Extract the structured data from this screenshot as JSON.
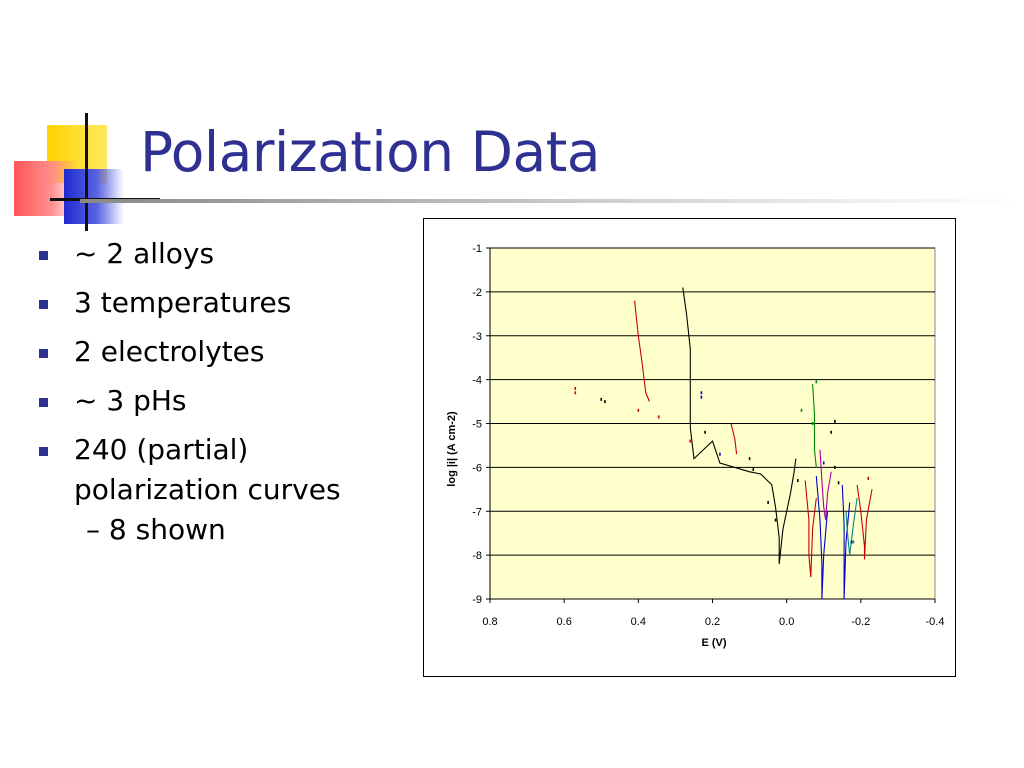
{
  "slide": {
    "title": "Polarization Data",
    "bullets": [
      "~ 2 alloys",
      "3 temperatures",
      "2 electrolytes",
      "~ 3 pHs",
      "240 (partial) polarization curves"
    ],
    "sub_bullet": "– 8 shown",
    "accent_color": "#2e3192"
  },
  "chart_data": {
    "type": "line",
    "xlabel": "E (V)",
    "ylabel": "log |i| (A cm-2)",
    "xlim": [
      0.8,
      -0.4
    ],
    "ylim": [
      -9,
      -1
    ],
    "x_ticks": [
      "0.8",
      "0.6",
      "0.4",
      "0.2",
      "0.0",
      "-0.2",
      "-0.4"
    ],
    "y_ticks": [
      "-1",
      "-2",
      "-3",
      "-4",
      "-5",
      "-6",
      "-7",
      "-8",
      "-9"
    ],
    "grid": "horizontal",
    "plot_background": "#ffffcc",
    "legend": "none",
    "series": [
      {
        "color": "#000000",
        "points": [
          [
            0.28,
            -1.9
          ],
          [
            0.27,
            -2.5
          ],
          [
            0.26,
            -3.3
          ],
          [
            0.26,
            -4.2
          ],
          [
            0.26,
            -5.1
          ],
          [
            0.25,
            -5.8
          ],
          [
            0.2,
            -5.4
          ],
          [
            0.18,
            -5.9
          ],
          [
            0.1,
            -6.1
          ],
          [
            0.07,
            -6.15
          ],
          [
            0.04,
            -6.4
          ],
          [
            0.03,
            -6.9
          ],
          [
            0.02,
            -7.6
          ],
          [
            0.02,
            -8.2
          ],
          [
            0.01,
            -7.4
          ],
          [
            -0.01,
            -6.6
          ],
          [
            -0.02,
            -6.1
          ],
          [
            -0.025,
            -5.8
          ]
        ]
      },
      {
        "color": "#cc0000",
        "points": [
          [
            0.41,
            -2.2
          ],
          [
            0.4,
            -3.0
          ],
          [
            0.39,
            -3.6
          ],
          [
            0.38,
            -4.3
          ],
          [
            0.37,
            -4.5
          ]
        ]
      },
      {
        "color": "#cc0000",
        "points": [
          [
            0.15,
            -5.0
          ],
          [
            0.14,
            -5.35
          ],
          [
            0.135,
            -5.7
          ]
        ]
      },
      {
        "color": "#cc0000",
        "points": [
          [
            -0.05,
            -6.3
          ],
          [
            -0.06,
            -7.2
          ],
          [
            -0.06,
            -8.0
          ],
          [
            -0.065,
            -8.5
          ],
          [
            -0.07,
            -7.4
          ],
          [
            -0.08,
            -6.7
          ]
        ]
      },
      {
        "color": "#cc0000",
        "points": [
          [
            -0.19,
            -6.4
          ],
          [
            -0.2,
            -7.0
          ],
          [
            -0.21,
            -7.8
          ],
          [
            -0.21,
            -8.1
          ],
          [
            -0.215,
            -7.2
          ],
          [
            -0.23,
            -6.5
          ]
        ]
      },
      {
        "color": "#008800",
        "points": [
          [
            -0.07,
            -4.1
          ],
          [
            -0.075,
            -4.8
          ],
          [
            -0.075,
            -5.6
          ],
          [
            -0.08,
            -6.0
          ]
        ]
      },
      {
        "color": "#0000cc",
        "points": [
          [
            -0.08,
            -6.2
          ],
          [
            -0.09,
            -7.2
          ],
          [
            -0.095,
            -8.2
          ],
          [
            -0.095,
            -9.0
          ],
          [
            -0.1,
            -8.0
          ],
          [
            -0.11,
            -7.0
          ]
        ]
      },
      {
        "color": "#0000cc",
        "points": [
          [
            -0.15,
            -6.4
          ],
          [
            -0.155,
            -7.3
          ],
          [
            -0.155,
            -8.3
          ],
          [
            -0.155,
            -9.0
          ],
          [
            -0.16,
            -7.7
          ],
          [
            -0.17,
            -6.8
          ]
        ]
      },
      {
        "color": "#aa00aa",
        "points": [
          [
            -0.09,
            -5.6
          ],
          [
            -0.095,
            -6.3
          ],
          [
            -0.1,
            -6.9
          ],
          [
            -0.105,
            -7.2
          ],
          [
            -0.11,
            -6.6
          ],
          [
            -0.12,
            -6.1
          ]
        ]
      },
      {
        "color": "#008888",
        "points": [
          [
            -0.16,
            -7.0
          ],
          [
            -0.165,
            -7.6
          ],
          [
            -0.17,
            -8.0
          ],
          [
            -0.18,
            -7.3
          ],
          [
            -0.19,
            -6.7
          ]
        ]
      }
    ],
    "scatter": [
      {
        "color": "#cc0000",
        "points": [
          [
            0.57,
            -4.2
          ],
          [
            0.57,
            -4.3
          ],
          [
            0.4,
            -4.7
          ],
          [
            0.26,
            -5.4
          ],
          [
            0.345,
            -4.85
          ],
          [
            -0.22,
            -6.25
          ]
        ]
      },
      {
        "color": "#000000",
        "points": [
          [
            0.5,
            -4.45
          ],
          [
            0.49,
            -4.5
          ],
          [
            0.1,
            -5.8
          ],
          [
            0.09,
            -6.05
          ],
          [
            0.22,
            -5.2
          ],
          [
            -0.03,
            -6.3
          ],
          [
            0.05,
            -6.8
          ],
          [
            0.03,
            -7.2
          ],
          [
            -0.12,
            -5.2
          ],
          [
            -0.13,
            -4.95
          ],
          [
            -0.14,
            -6.35
          ],
          [
            -0.13,
            -6.0
          ]
        ]
      },
      {
        "color": "#0000cc",
        "points": [
          [
            0.23,
            -4.3
          ],
          [
            0.23,
            -4.4
          ],
          [
            0.18,
            -5.7
          ],
          [
            -0.1,
            -5.9
          ],
          [
            -0.175,
            -7.7
          ]
        ]
      },
      {
        "color": "#008800",
        "points": [
          [
            -0.04,
            -4.7
          ],
          [
            -0.08,
            -4.05
          ],
          [
            -0.07,
            -5.0
          ]
        ]
      },
      {
        "color": "#008888",
        "points": [
          [
            -0.18,
            -7.7
          ],
          [
            -0.155,
            -7.4
          ]
        ]
      }
    ]
  }
}
